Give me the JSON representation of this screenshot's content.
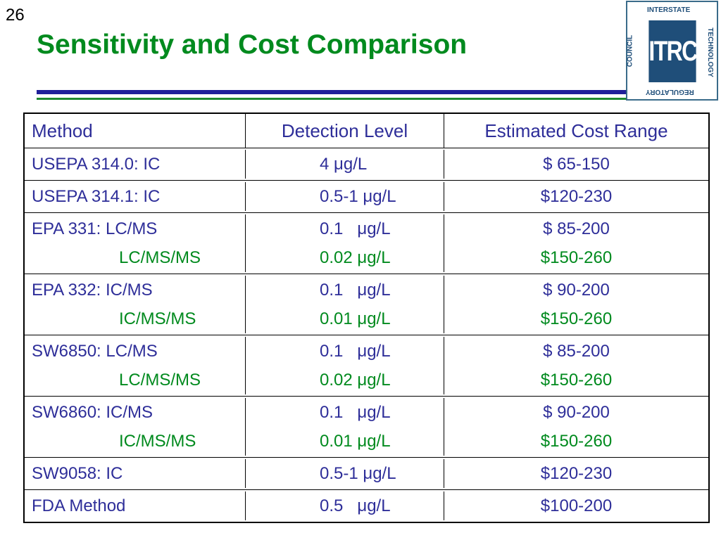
{
  "slide_number": "26",
  "title": "Sensitivity and Cost Comparison",
  "logo": {
    "mark": "ITRC",
    "top": "INTERSTATE",
    "right": "TECHNOLOGY",
    "bottom": "REGULATORY",
    "left": "COUNCIL"
  },
  "table": {
    "header": [
      "Method",
      "Detection Level",
      "Estimated Cost Range"
    ],
    "rows": [
      [
        [
          "USEPA 314.0: IC",
          "4 μg/L",
          "$ 65-150"
        ]
      ],
      [
        [
          "USEPA 314.1: IC",
          "0.5-1 μg/L",
          "$120-230"
        ]
      ],
      [
        [
          "EPA 331: LC/MS",
          "0.1   μg/L",
          "$ 85-200"
        ],
        [
          "LC/MS/MS",
          "0.02 μg/L",
          "$150-260"
        ]
      ],
      [
        [
          "EPA 332: IC/MS",
          "0.1   μg/L",
          "$ 90-200"
        ],
        [
          "IC/MS/MS",
          "0.01 μg/L",
          "$150-260"
        ]
      ],
      [
        [
          "SW6850: LC/MS",
          "0.1   μg/L",
          "$ 85-200"
        ],
        [
          "LC/MS/MS",
          "0.02 μg/L",
          "$150-260"
        ]
      ],
      [
        [
          "SW6860: IC/MS",
          "0.1   μg/L",
          "$ 90-200"
        ],
        [
          "IC/MS/MS",
          "0.01 μg/L",
          "$150-260"
        ]
      ],
      [
        [
          "SW9058: IC",
          "0.5-1 μg/L",
          "$120-230"
        ]
      ],
      [
        [
          "FDA Method",
          "0.5   μg/L",
          "$100-200"
        ]
      ]
    ]
  }
}
